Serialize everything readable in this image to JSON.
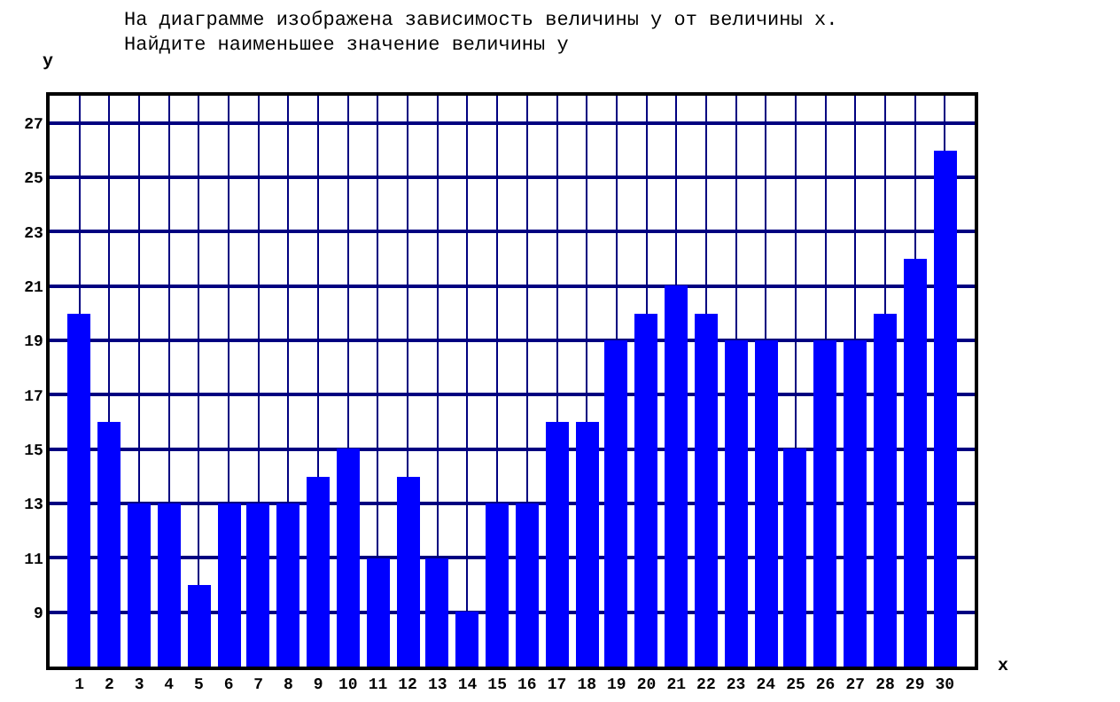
{
  "chart_data": {
    "type": "bar",
    "title": "На диаграмме изображена зависимость величины y от величины x.\nНайдите наименьшее значение величины y",
    "xlabel": "x",
    "ylabel": "y",
    "x": [
      1,
      2,
      3,
      4,
      5,
      6,
      7,
      8,
      9,
      10,
      11,
      12,
      13,
      14,
      15,
      16,
      17,
      18,
      19,
      20,
      21,
      22,
      23,
      24,
      25,
      26,
      27,
      28,
      29,
      30
    ],
    "values": [
      20,
      16,
      13,
      13,
      10,
      13,
      13,
      13,
      14,
      15,
      11,
      14,
      11,
      9,
      13,
      13,
      16,
      16,
      19,
      20,
      21,
      20,
      19,
      19,
      15,
      19,
      19,
      20,
      22,
      26
    ],
    "color": "#0000ff",
    "xlim": [
      0,
      31
    ],
    "xticks": [
      1,
      2,
      3,
      4,
      5,
      6,
      7,
      8,
      9,
      10,
      11,
      12,
      13,
      14,
      15,
      16,
      17,
      18,
      19,
      20,
      21,
      22,
      23,
      24,
      25,
      26,
      27,
      28,
      29,
      30
    ],
    "ylim": [
      7,
      28
    ],
    "yticks": [
      9,
      11,
      13,
      15,
      17,
      19,
      21,
      23,
      25,
      27
    ],
    "grid": true
  }
}
